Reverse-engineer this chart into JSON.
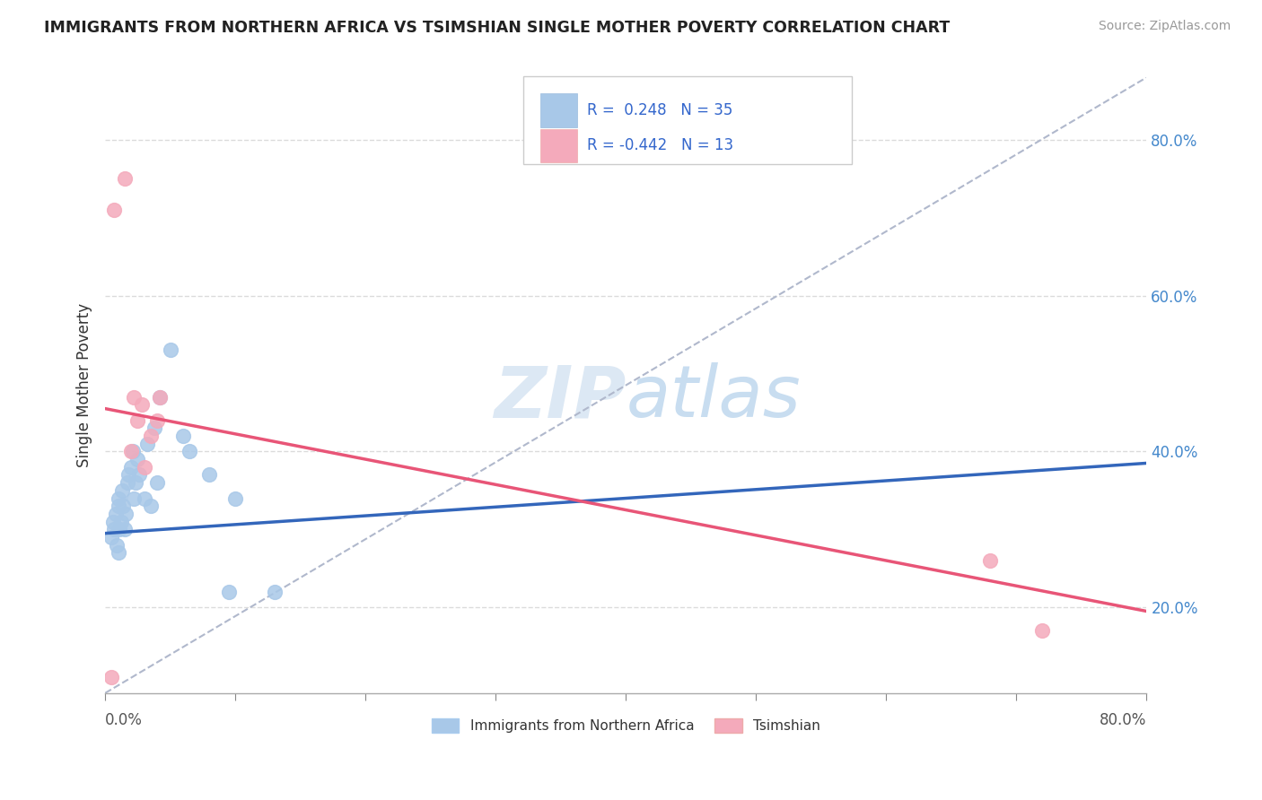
{
  "title": "IMMIGRANTS FROM NORTHERN AFRICA VS TSIMSHIAN SINGLE MOTHER POVERTY CORRELATION CHART",
  "source": "Source: ZipAtlas.com",
  "ylabel": "Single Mother Poverty",
  "legend_label1": "Immigrants from Northern Africa",
  "legend_label2": "Tsimshian",
  "r1": 0.248,
  "n1": 35,
  "r2": -0.442,
  "n2": 13,
  "xlim": [
    0.0,
    0.8
  ],
  "ylim": [
    0.09,
    0.88
  ],
  "yticks": [
    0.2,
    0.4,
    0.6,
    0.8
  ],
  "ytick_labels": [
    "20.0%",
    "40.0%",
    "60.0%",
    "80.0%"
  ],
  "xticks": [
    0.0,
    0.1,
    0.2,
    0.3,
    0.4,
    0.5,
    0.6,
    0.7,
    0.8
  ],
  "blue_line_x0": 0.0,
  "blue_line_y0": 0.295,
  "blue_line_x1": 0.8,
  "blue_line_y1": 0.385,
  "pink_line_x0": 0.0,
  "pink_line_y0": 0.455,
  "pink_line_x1": 0.8,
  "pink_line_y1": 0.195,
  "dash_line_x0": 0.0,
  "dash_line_y0": 0.09,
  "dash_line_x1": 0.8,
  "dash_line_y1": 0.88,
  "blue_scatter_x": [
    0.005,
    0.006,
    0.007,
    0.008,
    0.009,
    0.01,
    0.01,
    0.01,
    0.011,
    0.012,
    0.013,
    0.014,
    0.015,
    0.016,
    0.017,
    0.018,
    0.02,
    0.021,
    0.022,
    0.023,
    0.025,
    0.026,
    0.03,
    0.032,
    0.035,
    0.038,
    0.04,
    0.042,
    0.05,
    0.06,
    0.065,
    0.08,
    0.095,
    0.1,
    0.13
  ],
  "blue_scatter_y": [
    0.29,
    0.31,
    0.3,
    0.32,
    0.28,
    0.33,
    0.27,
    0.34,
    0.3,
    0.31,
    0.35,
    0.33,
    0.3,
    0.32,
    0.36,
    0.37,
    0.38,
    0.4,
    0.34,
    0.36,
    0.39,
    0.37,
    0.34,
    0.41,
    0.33,
    0.43,
    0.36,
    0.47,
    0.53,
    0.42,
    0.4,
    0.37,
    0.22,
    0.34,
    0.22
  ],
  "pink_scatter_x": [
    0.005,
    0.007,
    0.015,
    0.02,
    0.022,
    0.025,
    0.028,
    0.03,
    0.035,
    0.04,
    0.042,
    0.68,
    0.72
  ],
  "pink_scatter_y": [
    0.11,
    0.71,
    0.75,
    0.4,
    0.47,
    0.44,
    0.46,
    0.38,
    0.42,
    0.44,
    0.47,
    0.26,
    0.17
  ],
  "color_blue": "#a8c8e8",
  "color_pink": "#f4aabb",
  "color_line_blue": "#3366bb",
  "color_line_pink": "#e85577",
  "color_dashed": "#b0b8cc",
  "background": "#ffffff",
  "watermark_color": "#dce8f4"
}
